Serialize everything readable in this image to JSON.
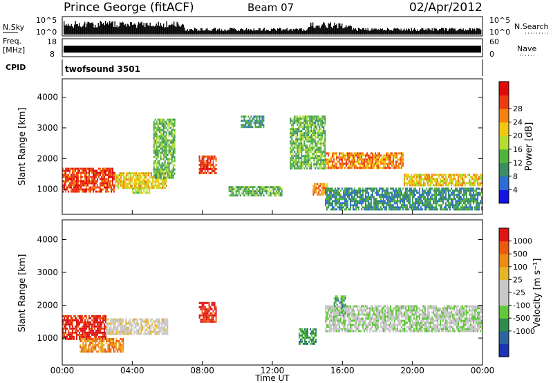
{
  "header": {
    "title": "Prince George (fitACF)",
    "beam": "Beam 07",
    "date": "02/Apr/2012"
  },
  "nsky": {
    "label": "N.Sky",
    "ticks": [
      "10^5",
      "10^0"
    ],
    "right_ticks": [
      "10^5",
      "10^0"
    ],
    "right_label": "N.Search"
  },
  "freq": {
    "label_line1": "Freq.",
    "label_line2": "[MHz]",
    "ticks": [
      "18",
      "8"
    ],
    "right_ticks": [
      "60",
      "0"
    ],
    "right_label": "Nave"
  },
  "cpid": {
    "label": "CPID",
    "value": "twofsound 3501"
  },
  "chart_data": [
    {
      "type": "heatmap",
      "name": "power",
      "ylabel": "Slant Range [km]",
      "yticks": [
        1000,
        2000,
        3000,
        4000
      ],
      "ylim": [
        180,
        4600
      ],
      "xlim": [
        0,
        24
      ],
      "colorbar": {
        "label": "Power [dB]",
        "ticks": [
          "4",
          "8",
          "12",
          "16",
          "20",
          "24",
          "28"
        ],
        "colors": [
          "#1414e6",
          "#2d6ed2",
          "#3c8c64",
          "#50b43c",
          "#b4dc32",
          "#f0c814",
          "#f5820f",
          "#eb3c14",
          "#e10a0a"
        ]
      },
      "regions": [
        {
          "t0": 0.0,
          "t1": 3.0,
          "r0": 950,
          "r1": 1700,
          "level": 7
        },
        {
          "t0": 3.0,
          "t1": 6.0,
          "r0": 1050,
          "r1": 1550,
          "level": 5
        },
        {
          "t0": 5.2,
          "t1": 6.4,
          "r0": 1400,
          "r1": 3300,
          "level": 3
        },
        {
          "t0": 4.0,
          "t1": 5.0,
          "r0": 850,
          "r1": 1050,
          "level": 4
        },
        {
          "t0": 7.8,
          "t1": 8.8,
          "r0": 1500,
          "r1": 2100,
          "level": 7
        },
        {
          "t0": 9.5,
          "t1": 12.5,
          "r0": 800,
          "r1": 1100,
          "level": 3
        },
        {
          "t0": 10.2,
          "t1": 11.5,
          "r0": 3000,
          "r1": 3400,
          "level": 2
        },
        {
          "t0": 13.0,
          "t1": 15.0,
          "r0": 1700,
          "r1": 3400,
          "level": 3
        },
        {
          "t0": 14.3,
          "t1": 15.1,
          "r0": 850,
          "r1": 1200,
          "level": 6
        },
        {
          "t0": 15.0,
          "t1": 19.5,
          "r0": 1700,
          "r1": 2200,
          "level": 6
        },
        {
          "t0": 19.5,
          "t1": 24.0,
          "r0": 1100,
          "r1": 1500,
          "level": 5
        },
        {
          "t0": 15.0,
          "t1": 24.0,
          "r0": 350,
          "r1": 1050,
          "level": 2
        }
      ]
    },
    {
      "type": "heatmap",
      "name": "velocity",
      "ylabel": "Slant Range [km]",
      "yticks": [
        1000,
        2000,
        3000,
        4000
      ],
      "ylim": [
        180,
        4600
      ],
      "xlim": [
        0,
        24
      ],
      "colorbar": {
        "label": "Velocity [m s⁻¹]",
        "ticks": [
          "1000",
          "500",
          "100",
          "25",
          "-25",
          "-100",
          "-500",
          "-1000"
        ],
        "colors": [
          "#1e32b4",
          "#2d64a0",
          "#2d8c4b",
          "#64c83c",
          "#c8c8c8",
          "#c8c8c8",
          "#e6b428",
          "#eb8c14",
          "#ec5a0f",
          "#e11414"
        ]
      },
      "regions": [
        {
          "t0": 0.0,
          "t1": 2.5,
          "r0": 1000,
          "r1": 1700,
          "level": 9
        },
        {
          "t0": 1.0,
          "t1": 3.5,
          "r0": 600,
          "r1": 1000,
          "level": 7
        },
        {
          "t0": 2.5,
          "t1": 6.0,
          "r0": 1100,
          "r1": 1600,
          "level": 5
        },
        {
          "t0": 7.8,
          "t1": 8.8,
          "r0": 1500,
          "r1": 2100,
          "level": 9
        },
        {
          "t0": 13.5,
          "t1": 14.5,
          "r0": 800,
          "r1": 1300,
          "level": 2
        },
        {
          "t0": 15.5,
          "t1": 16.2,
          "r0": 1700,
          "r1": 2300,
          "level": 2
        },
        {
          "t0": 15.0,
          "t1": 24.0,
          "r0": 1200,
          "r1": 2000,
          "level": 4
        }
      ]
    }
  ],
  "xaxis": {
    "label": "Time UT",
    "ticks": [
      "00:00",
      "04:00",
      "08:00",
      "12:00",
      "16:00",
      "20:00",
      "00:00"
    ]
  }
}
